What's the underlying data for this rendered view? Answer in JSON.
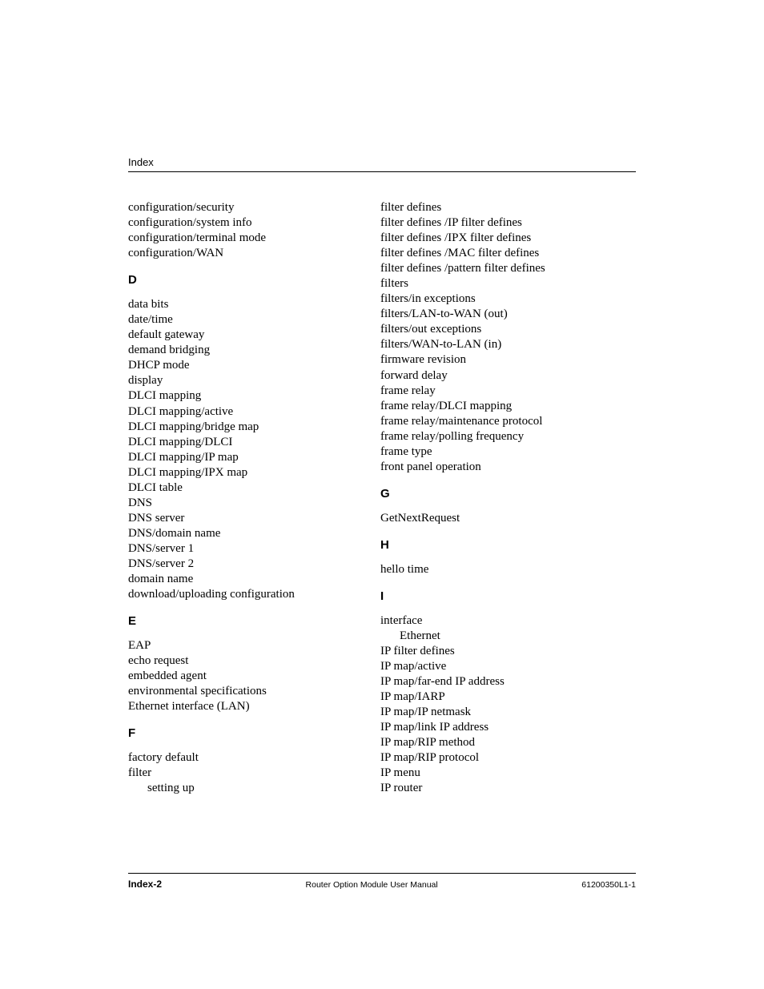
{
  "header": {
    "label": "Index"
  },
  "left_column": {
    "intro_entries": [
      "configuration/security",
      "configuration/system info",
      "configuration/terminal mode",
      "configuration/WAN"
    ],
    "sections": [
      {
        "letter": "D",
        "entries": [
          {
            "text": "data bits",
            "indent": false
          },
          {
            "text": "date/time",
            "indent": false
          },
          {
            "text": "default gateway",
            "indent": false
          },
          {
            "text": "demand bridging",
            "indent": false
          },
          {
            "text": "DHCP mode",
            "indent": false
          },
          {
            "text": "display",
            "indent": false
          },
          {
            "text": "DLCI mapping",
            "indent": false
          },
          {
            "text": "DLCI mapping/active",
            "indent": false
          },
          {
            "text": "DLCI mapping/bridge map",
            "indent": false
          },
          {
            "text": "DLCI mapping/DLCI",
            "indent": false
          },
          {
            "text": "DLCI mapping/IP map",
            "indent": false
          },
          {
            "text": "DLCI mapping/IPX map",
            "indent": false
          },
          {
            "text": "DLCI table",
            "indent": false
          },
          {
            "text": "DNS",
            "indent": false
          },
          {
            "text": "DNS server",
            "indent": false
          },
          {
            "text": "DNS/domain name",
            "indent": false
          },
          {
            "text": "DNS/server 1",
            "indent": false
          },
          {
            "text": "DNS/server 2",
            "indent": false
          },
          {
            "text": "domain name",
            "indent": false
          },
          {
            "text": "download/uploading configuration",
            "indent": false
          }
        ]
      },
      {
        "letter": "E",
        "entries": [
          {
            "text": "EAP",
            "indent": false
          },
          {
            "text": "echo request",
            "indent": false
          },
          {
            "text": "embedded agent",
            "indent": false
          },
          {
            "text": "environmental specifications",
            "indent": false
          },
          {
            "text": "Ethernet interface (LAN)",
            "indent": false
          }
        ]
      },
      {
        "letter": "F",
        "entries": [
          {
            "text": "factory default",
            "indent": false
          },
          {
            "text": "filter",
            "indent": false
          },
          {
            "text": "setting up",
            "indent": true
          }
        ]
      }
    ]
  },
  "right_column": {
    "intro_entries": [
      "filter defines",
      "filter defines /IP filter defines",
      "filter defines /IPX filter defines",
      "filter defines /MAC filter defines",
      "filter defines /pattern filter defines",
      "filters",
      "filters/in exceptions",
      "filters/LAN-to-WAN (out)",
      "filters/out exceptions",
      "filters/WAN-to-LAN (in)",
      "firmware revision",
      "forward delay",
      "frame relay",
      "frame relay/DLCI mapping",
      "frame relay/maintenance protocol",
      "frame relay/polling frequency",
      "frame type",
      "front panel operation"
    ],
    "sections": [
      {
        "letter": "G",
        "entries": [
          {
            "text": "GetNextRequest",
            "indent": false
          }
        ]
      },
      {
        "letter": "H",
        "entries": [
          {
            "text": "hello time",
            "indent": false
          }
        ]
      },
      {
        "letter": "I",
        "entries": [
          {
            "text": "interface",
            "indent": false
          },
          {
            "text": "Ethernet",
            "indent": true
          },
          {
            "text": "IP filter defines",
            "indent": false
          },
          {
            "text": "IP map/active",
            "indent": false
          },
          {
            "text": "IP map/far-end IP address",
            "indent": false
          },
          {
            "text": "IP map/IARP",
            "indent": false
          },
          {
            "text": "IP map/IP netmask",
            "indent": false
          },
          {
            "text": "IP map/link IP address",
            "indent": false
          },
          {
            "text": "IP map/RIP method",
            "indent": false
          },
          {
            "text": "IP map/RIP protocol",
            "indent": false
          },
          {
            "text": "IP menu",
            "indent": false
          },
          {
            "text": "IP router",
            "indent": false
          }
        ]
      }
    ]
  },
  "footer": {
    "left": "Index-2",
    "center": "Router Option Module User Manual",
    "right": "61200350L1-1"
  }
}
